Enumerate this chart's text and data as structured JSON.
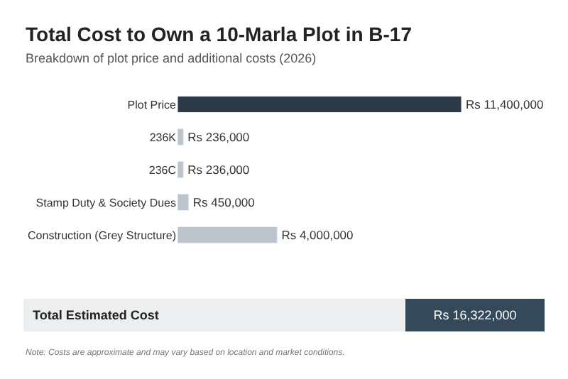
{
  "chart_data": {
    "type": "bar",
    "orientation": "horizontal",
    "title": "Total Cost to Own a 10-Marla Plot in B-17",
    "subtitle": "Breakdown of plot price and additional costs (2026)",
    "categories": [
      "Plot Price",
      "236K",
      "236C",
      "Stamp Duty & Society Dues",
      "Construction (Grey Structure)"
    ],
    "values": [
      11400000,
      236000,
      236000,
      450000,
      4000000
    ],
    "colors": [
      "#2b3a46",
      "#bcc5ce",
      "#bcc5ce",
      "#bcc5ce",
      "#bcc5ce"
    ],
    "value_labels": [
      "Rs 11,400,000",
      "Rs 236,000",
      "Rs 236,000",
      "Rs 450,000",
      "Rs 4,000,000"
    ],
    "xlim": [
      0,
      11400000
    ],
    "tick_labels": "y",
    "annotations": [
      "Total Estimated Cost",
      "Rs 16,322,000",
      "Note: Costs are approximate and may vary based on location and market conditions."
    ]
  }
}
